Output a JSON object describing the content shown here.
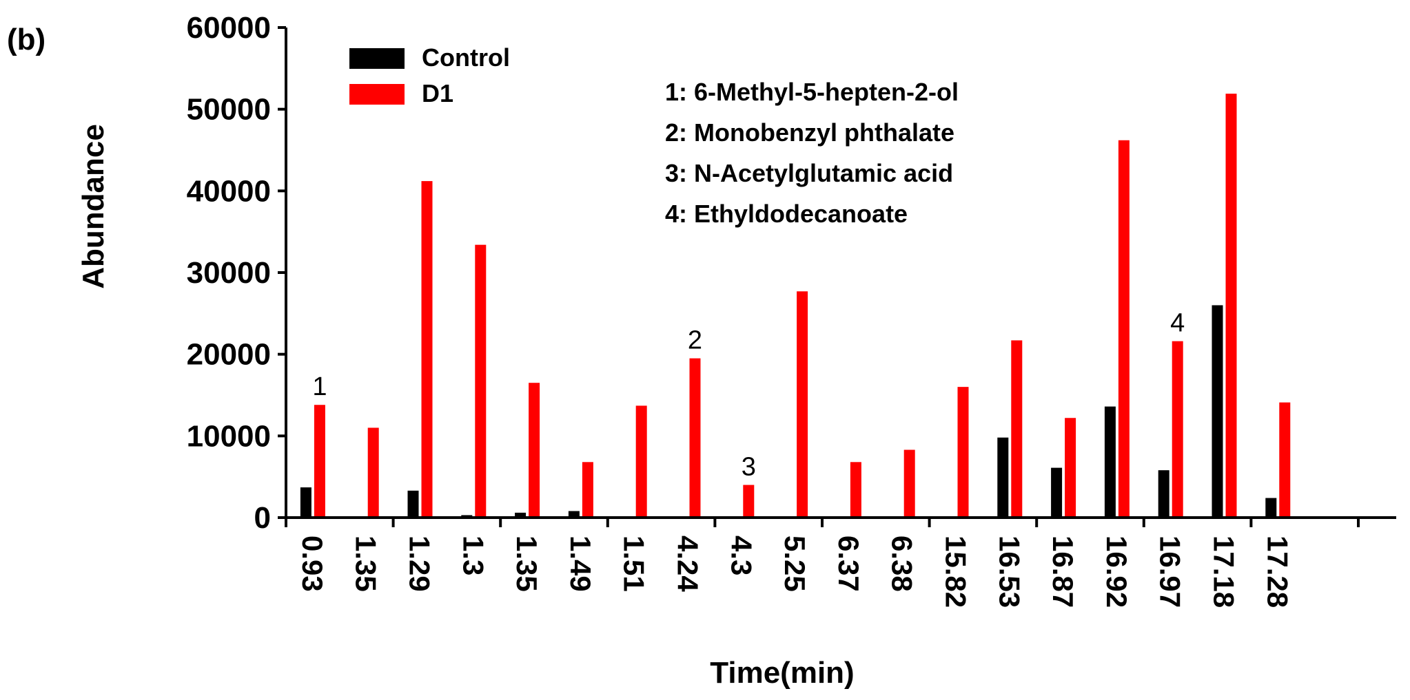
{
  "chart_data": {
    "type": "bar",
    "panel_label": "(b)",
    "xlabel": "Time(min)",
    "ylabel": "Abundance",
    "ylim": [
      0,
      60000
    ],
    "yticks": [
      "0",
      "10000",
      "20000",
      "30000",
      "40000",
      "50000",
      "60000"
    ],
    "categories": [
      "0.93",
      "1.35",
      "1.29",
      "1.3",
      "1.35",
      "1.49",
      "1.51",
      "4.24",
      "4.3",
      "5.25",
      "6.37",
      "6.38",
      "15.82",
      "16.53",
      "16.87",
      "16.92",
      "16.97",
      "17.18",
      "17.28"
    ],
    "series": [
      {
        "name": "Control",
        "color": "#000000",
        "values": [
          3700,
          0,
          3300,
          300,
          600,
          800,
          0,
          0,
          0,
          0,
          0,
          0,
          0,
          9800,
          6100,
          13600,
          5800,
          26000,
          2400
        ]
      },
      {
        "name": "D1",
        "color": "#ff0000",
        "values": [
          13800,
          11000,
          41200,
          33400,
          16500,
          6800,
          13700,
          19500,
          4000,
          27700,
          6800,
          8300,
          16000,
          21700,
          12200,
          46200,
          21600,
          51900,
          14100
        ]
      }
    ],
    "legend": [
      "Control",
      "D1"
    ],
    "compound_key": [
      "1: 6-Methyl-5-hepten-2-ol",
      "2: Monobenzyl phthalate",
      "3: N-Acetylglutamic acid",
      "4: Ethyldodecanoate"
    ],
    "annotations": [
      {
        "text": "1",
        "category_index": 0
      },
      {
        "text": "2",
        "category_index": 7
      },
      {
        "text": "3",
        "category_index": 8
      },
      {
        "text": "4",
        "category_index": 16
      }
    ]
  }
}
